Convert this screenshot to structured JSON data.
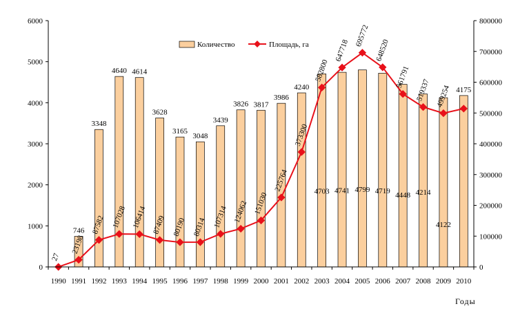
{
  "chart_data": {
    "type": "bar+line",
    "x_axis_title": "Годы",
    "categories": [
      "1990",
      "1991",
      "1992",
      "1993",
      "1994",
      "1995",
      "1996",
      "1997",
      "1998",
      "1999",
      "2000",
      "2001",
      "2002",
      "2003",
      "2004",
      "2005",
      "2006",
      "2007",
      "2008",
      "2009",
      "2010"
    ],
    "series": [
      {
        "name": "Количество",
        "kind": "bar",
        "axis": "left",
        "color": "#FBCF9E",
        "values": [
          0,
          746,
          3348,
          4640,
          4614,
          3628,
          3165,
          3048,
          3439,
          3826,
          3817,
          3986,
          4240,
          4703,
          4741,
          4799,
          4719,
          4448,
          4214,
          4122,
          4175
        ],
        "labels": [
          "",
          "746",
          "3348",
          "4640",
          "4614",
          "3628",
          "3165",
          "3048",
          "3439",
          "3826",
          "3817",
          "3986",
          "4240",
          "4703",
          "4741",
          "4799",
          "4719",
          "4448",
          "4214",
          "4122",
          "4175"
        ]
      },
      {
        "name": "Площадь, га",
        "kind": "line",
        "axis": "right",
        "color": "#E8111A",
        "values": [
          27,
          23198,
          87582,
          107028,
          106414,
          87409,
          80190,
          80314,
          107314,
          124062,
          151030,
          225764,
          373300,
          582800,
          647718,
          695772,
          648520,
          561791,
          519337,
          499254,
          514254
        ],
        "labels": [
          "27",
          "23198",
          "87582",
          "107028",
          "106414",
          "87409",
          "80190",
          "80314",
          "107314",
          "124062",
          "151030",
          "225764",
          "373300",
          "582800",
          "647718",
          "695772",
          "648520",
          "561791",
          "519337",
          "499254",
          ""
        ]
      }
    ],
    "y_left": {
      "min": 0,
      "max": 6000,
      "ticks": [
        "0",
        "1000",
        "2000",
        "3000",
        "4000",
        "5000",
        "6000"
      ]
    },
    "y_right": {
      "min": 0,
      "max": 800000,
      "ticks": [
        "0",
        "100000",
        "200000",
        "300000",
        "400000",
        "500000",
        "600000",
        "700000",
        "800000"
      ]
    },
    "legend": {
      "placement": "top-center",
      "items": [
        "Количество",
        "Площадь, га"
      ]
    },
    "grid": false
  }
}
